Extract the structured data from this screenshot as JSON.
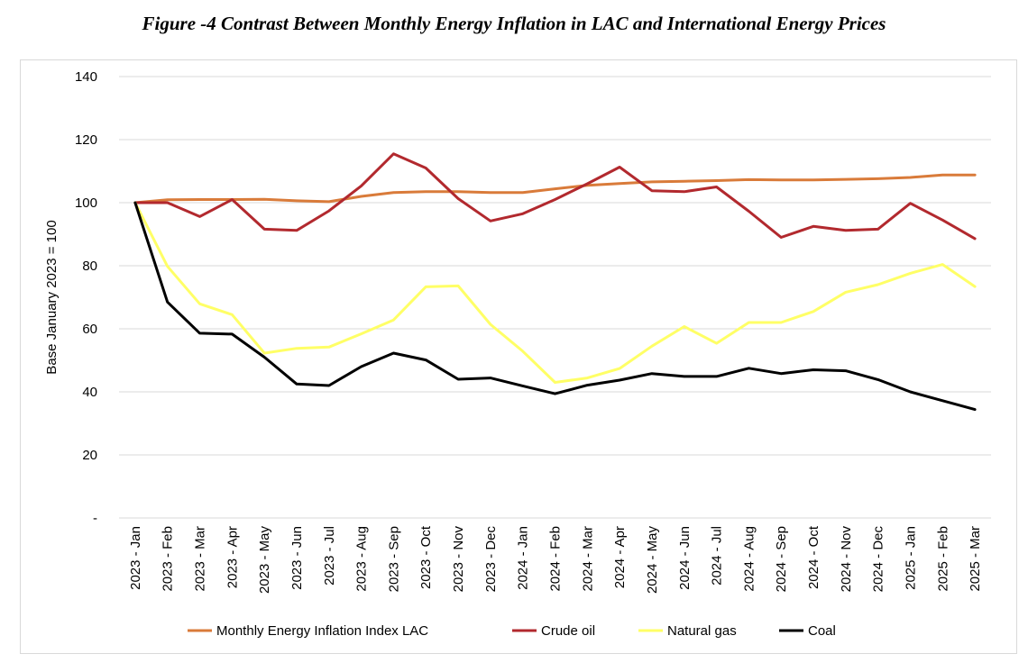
{
  "chart_data": {
    "type": "line",
    "title": "Figure -4 Contrast Between Monthly Energy Inflation in LAC and International Energy Prices",
    "ylabel": "Base January 2023 = 100",
    "xlabel": "",
    "ylim": [
      0,
      140
    ],
    "yticks": [
      "-",
      "20",
      "40",
      "60",
      "80",
      "100",
      "120",
      "140"
    ],
    "grid": true,
    "legend_position": "bottom",
    "categories": [
      "2023 - Jan",
      "2023 - Feb",
      "2023 - Mar",
      "2023 - Apr",
      "2023 - May",
      "2023 - Jun",
      "2023 - Jul",
      "2023 - Aug",
      "2023 - Sep",
      "2023 - Oct",
      "2023 - Nov",
      "2023 - Dec",
      "2024 - Jan",
      "2024 - Feb",
      "2024 - Mar",
      "2024 - Apr",
      "2024 - May",
      "2024 - Jun",
      "2024 - Jul",
      "2024 - Aug",
      "2024 - Sep",
      "2024 - Oct",
      "2024 - Nov",
      "2024 - Dec",
      "2025 - Jan",
      "2025 - Feb",
      "2025 - Mar"
    ],
    "series": [
      {
        "name": "Monthly Energy Inflation Index LAC",
        "color": "#D97B3A",
        "values": [
          100,
          100.9,
          101,
          101,
          101.1,
          100.6,
          100.3,
          102,
          103.2,
          103.5,
          103.5,
          103.2,
          103.2,
          104.4,
          105.5,
          106.1,
          106.6,
          106.8,
          107,
          107.3,
          107.2,
          107.2,
          107.4,
          107.6,
          108,
          108.8,
          108.8
        ]
      },
      {
        "name": "Crude oil",
        "color": "#B2292E",
        "values": [
          100,
          100,
          95.6,
          101,
          91.6,
          91.2,
          97.4,
          105.3,
          115.5,
          111,
          101.3,
          94.2,
          96.5,
          101,
          106,
          111.3,
          103.8,
          103.5,
          105,
          97.3,
          89,
          92.5,
          91.2,
          91.6,
          99.8,
          94.5,
          88.6
        ]
      },
      {
        "name": "Natural gas",
        "color": "#FFFF66",
        "values": [
          100,
          79.8,
          67.9,
          64.5,
          52.3,
          53.8,
          54.2,
          58.4,
          62.8,
          73.3,
          73.6,
          61.4,
          52.9,
          43,
          44.4,
          47.4,
          54.5,
          60.7,
          55.4,
          62,
          62,
          65.5,
          71.6,
          74,
          77.6,
          80.4,
          73.4
        ]
      },
      {
        "name": "Coal",
        "color": "#000000",
        "values": [
          100,
          68.5,
          58.6,
          58.3,
          51,
          42.5,
          42,
          48,
          52.3,
          50.1,
          44,
          44.4,
          41.9,
          39.4,
          42.1,
          43.7,
          45.8,
          44.9,
          44.9,
          47.5,
          45.8,
          47,
          46.7,
          43.9,
          40,
          37.2,
          34.4
        ]
      }
    ]
  }
}
